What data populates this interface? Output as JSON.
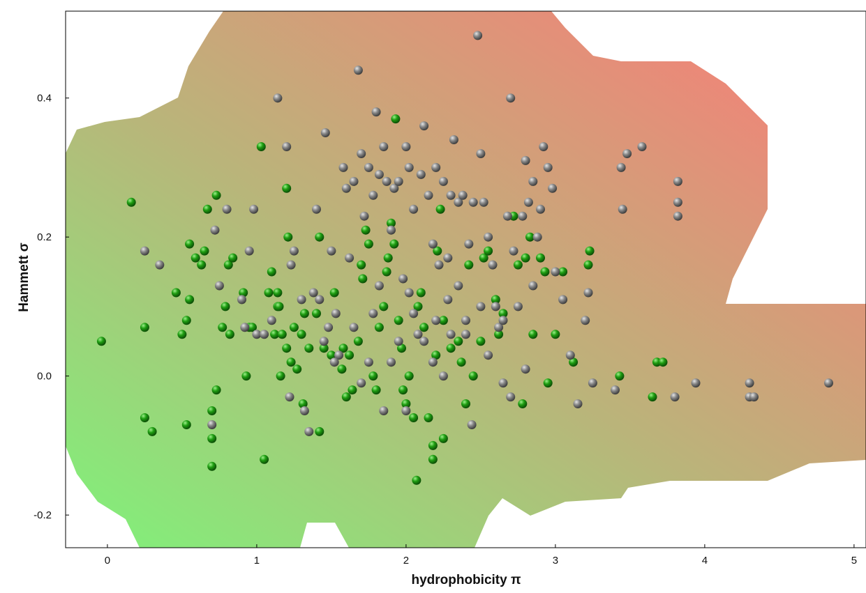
{
  "chart_data": {
    "type": "scatter",
    "title": "",
    "xlabel": "hydrophobicity π",
    "ylabel": "Hammett σ",
    "xlim": [
      -0.28,
      5.08
    ],
    "ylim": [
      -0.247,
      0.525
    ],
    "xticks": [
      0,
      1,
      2,
      3,
      4,
      5
    ],
    "yticks": [
      -0.2,
      0.0,
      0.2,
      0.4
    ],
    "ytick_labels": [
      "-0.2",
      "0.0",
      "0.2",
      "0.4"
    ],
    "xtick_labels": [
      "0",
      "1",
      "2",
      "3",
      "4",
      "5"
    ],
    "grid": false,
    "legend": "none",
    "background_gradient": {
      "low_color": "#7ff27a",
      "high_color": "#fe7878"
    },
    "colors": {
      "green_series": "#1f9e12",
      "gray_series": "#8a8a8a"
    },
    "series": [
      {
        "color_role": "green",
        "points": [
          [
            -0.04,
            0.05
          ],
          [
            0.16,
            0.25
          ],
          [
            0.25,
            0.07
          ],
          [
            0.25,
            -0.06
          ],
          [
            0.3,
            -0.08
          ],
          [
            0.46,
            0.12
          ],
          [
            0.5,
            0.06
          ],
          [
            0.53,
            0.08
          ],
          [
            0.53,
            -0.07
          ],
          [
            0.55,
            0.11
          ],
          [
            0.55,
            0.19
          ],
          [
            0.59,
            0.17
          ],
          [
            0.63,
            0.16
          ],
          [
            0.65,
            0.18
          ],
          [
            0.67,
            0.24
          ],
          [
            0.7,
            -0.05
          ],
          [
            0.7,
            -0.09
          ],
          [
            0.7,
            -0.13
          ],
          [
            0.73,
            0.26
          ],
          [
            0.73,
            -0.02
          ],
          [
            0.77,
            0.07
          ],
          [
            0.79,
            0.1
          ],
          [
            0.81,
            0.16
          ],
          [
            0.82,
            0.06
          ],
          [
            0.84,
            0.17
          ],
          [
            0.91,
            0.12
          ],
          [
            0.93,
            0.0
          ],
          [
            0.95,
            0.07
          ],
          [
            0.97,
            0.07
          ],
          [
            1.03,
            0.33
          ],
          [
            1.05,
            -0.12
          ],
          [
            1.08,
            0.12
          ],
          [
            1.1,
            0.15
          ],
          [
            1.12,
            0.06
          ],
          [
            1.14,
            0.1
          ],
          [
            1.14,
            0.12
          ],
          [
            1.16,
            0.0
          ],
          [
            1.17,
            0.06
          ],
          [
            1.2,
            0.04
          ],
          [
            1.2,
            0.27
          ],
          [
            1.21,
            0.2
          ],
          [
            1.23,
            0.02
          ],
          [
            1.25,
            0.07
          ],
          [
            1.27,
            0.01
          ],
          [
            1.3,
            0.06
          ],
          [
            1.31,
            -0.04
          ],
          [
            1.32,
            0.09
          ],
          [
            1.35,
            0.04
          ],
          [
            1.4,
            0.09
          ],
          [
            1.42,
            0.2
          ],
          [
            1.45,
            0.04
          ],
          [
            1.5,
            0.03
          ],
          [
            1.52,
            0.12
          ],
          [
            1.57,
            0.01
          ],
          [
            1.6,
            -0.03
          ],
          [
            1.62,
            0.03
          ],
          [
            1.64,
            -0.02
          ],
          [
            1.68,
            0.05
          ],
          [
            1.7,
            0.16
          ],
          [
            1.71,
            0.14
          ],
          [
            1.73,
            0.21
          ],
          [
            1.75,
            0.19
          ],
          [
            1.78,
            0.0
          ],
          [
            1.8,
            -0.02
          ],
          [
            1.82,
            0.07
          ],
          [
            1.85,
            0.1
          ],
          [
            1.87,
            0.15
          ],
          [
            1.88,
            0.17
          ],
          [
            1.9,
            0.22
          ],
          [
            1.92,
            0.19
          ],
          [
            1.93,
            0.37
          ],
          [
            1.95,
            0.08
          ],
          [
            1.97,
            0.04
          ],
          [
            1.98,
            -0.02
          ],
          [
            2.0,
            -0.04
          ],
          [
            2.02,
            0.0
          ],
          [
            2.05,
            -0.06
          ],
          [
            2.08,
            0.1
          ],
          [
            2.1,
            0.12
          ],
          [
            2.12,
            0.07
          ],
          [
            2.15,
            -0.06
          ],
          [
            2.18,
            -0.1
          ],
          [
            2.2,
            0.03
          ],
          [
            2.21,
            0.18
          ],
          [
            2.23,
            0.24
          ],
          [
            2.25,
            0.08
          ],
          [
            2.25,
            -0.09
          ],
          [
            2.3,
            0.04
          ],
          [
            2.35,
            0.05
          ],
          [
            2.37,
            0.02
          ],
          [
            2.4,
            -0.04
          ],
          [
            2.42,
            0.16
          ],
          [
            2.45,
            0.0
          ],
          [
            2.5,
            0.05
          ],
          [
            2.52,
            0.17
          ],
          [
            2.55,
            0.18
          ],
          [
            2.6,
            0.11
          ],
          [
            2.62,
            0.06
          ],
          [
            2.65,
            0.09
          ],
          [
            2.72,
            0.23
          ],
          [
            2.75,
            0.16
          ],
          [
            2.78,
            -0.04
          ],
          [
            2.8,
            0.17
          ],
          [
            2.83,
            0.2
          ],
          [
            2.85,
            0.06
          ],
          [
            2.9,
            0.17
          ],
          [
            2.93,
            0.15
          ],
          [
            2.95,
            -0.01
          ],
          [
            3.0,
            0.06
          ],
          [
            3.05,
            0.15
          ],
          [
            3.12,
            0.02
          ],
          [
            3.22,
            0.16
          ],
          [
            3.23,
            0.18
          ],
          [
            3.43,
            0.0
          ],
          [
            3.65,
            -0.03
          ],
          [
            3.68,
            0.02
          ],
          [
            3.72,
            0.02
          ],
          [
            2.07,
            -0.15
          ],
          [
            1.58,
            0.04
          ],
          [
            2.18,
            -0.12
          ],
          [
            1.42,
            -0.08
          ],
          [
            1.15,
            0.1
          ]
        ]
      },
      {
        "color_role": "gray",
        "points": [
          [
            0.25,
            0.18
          ],
          [
            0.35,
            0.16
          ],
          [
            0.7,
            -0.07
          ],
          [
            0.72,
            0.21
          ],
          [
            0.75,
            0.13
          ],
          [
            0.8,
            0.24
          ],
          [
            0.9,
            0.11
          ],
          [
            0.95,
            0.18
          ],
          [
            0.98,
            0.24
          ],
          [
            1.0,
            0.06
          ],
          [
            1.14,
            0.4
          ],
          [
            1.2,
            0.33
          ],
          [
            1.23,
            0.16
          ],
          [
            1.25,
            0.18
          ],
          [
            1.3,
            0.11
          ],
          [
            1.32,
            -0.05
          ],
          [
            1.35,
            -0.08
          ],
          [
            1.4,
            0.24
          ],
          [
            1.42,
            0.11
          ],
          [
            1.46,
            0.35
          ],
          [
            1.5,
            0.18
          ],
          [
            1.53,
            0.09
          ],
          [
            1.55,
            0.03
          ],
          [
            1.58,
            0.3
          ],
          [
            1.6,
            0.27
          ],
          [
            1.62,
            0.17
          ],
          [
            1.65,
            0.28
          ],
          [
            1.68,
            0.44
          ],
          [
            1.7,
            0.32
          ],
          [
            1.72,
            0.23
          ],
          [
            1.75,
            0.3
          ],
          [
            1.78,
            0.26
          ],
          [
            1.8,
            0.38
          ],
          [
            1.82,
            0.29
          ],
          [
            1.85,
            0.33
          ],
          [
            1.87,
            0.28
          ],
          [
            1.9,
            0.21
          ],
          [
            1.92,
            0.27
          ],
          [
            1.95,
            0.28
          ],
          [
            1.98,
            0.14
          ],
          [
            2.0,
            0.33
          ],
          [
            2.02,
            0.3
          ],
          [
            2.05,
            0.24
          ],
          [
            2.08,
            0.06
          ],
          [
            2.1,
            0.29
          ],
          [
            2.12,
            0.36
          ],
          [
            2.15,
            0.26
          ],
          [
            2.18,
            0.19
          ],
          [
            2.2,
            0.3
          ],
          [
            2.22,
            0.16
          ],
          [
            2.25,
            0.28
          ],
          [
            2.28,
            0.17
          ],
          [
            2.3,
            0.26
          ],
          [
            2.32,
            0.34
          ],
          [
            2.35,
            0.25
          ],
          [
            2.38,
            0.26
          ],
          [
            2.4,
            0.08
          ],
          [
            2.42,
            0.19
          ],
          [
            2.45,
            0.25
          ],
          [
            2.48,
            0.49
          ],
          [
            2.5,
            0.32
          ],
          [
            2.52,
            0.25
          ],
          [
            2.55,
            0.2
          ],
          [
            2.58,
            0.16
          ],
          [
            2.6,
            0.1
          ],
          [
            2.62,
            0.07
          ],
          [
            2.65,
            0.08
          ],
          [
            2.68,
            0.23
          ],
          [
            2.7,
            0.4
          ],
          [
            2.72,
            0.18
          ],
          [
            2.75,
            0.1
          ],
          [
            2.78,
            0.23
          ],
          [
            2.8,
            0.31
          ],
          [
            2.82,
            0.25
          ],
          [
            2.85,
            0.28
          ],
          [
            2.88,
            0.2
          ],
          [
            2.9,
            0.24
          ],
          [
            2.92,
            0.33
          ],
          [
            2.95,
            0.3
          ],
          [
            2.98,
            0.27
          ],
          [
            3.0,
            0.15
          ],
          [
            3.05,
            0.11
          ],
          [
            3.1,
            0.03
          ],
          [
            3.15,
            -0.04
          ],
          [
            3.2,
            0.08
          ],
          [
            3.22,
            0.12
          ],
          [
            3.25,
            -0.01
          ],
          [
            3.4,
            -0.02
          ],
          [
            3.44,
            0.3
          ],
          [
            3.45,
            0.24
          ],
          [
            3.48,
            0.32
          ],
          [
            3.58,
            0.33
          ],
          [
            3.8,
            -0.03
          ],
          [
            3.82,
            0.28
          ],
          [
            3.82,
            0.25
          ],
          [
            3.82,
            0.23
          ],
          [
            3.94,
            -0.01
          ],
          [
            4.3,
            -0.01
          ],
          [
            4.3,
            -0.03
          ],
          [
            4.33,
            -0.03
          ],
          [
            4.83,
            -0.01
          ],
          [
            1.65,
            0.07
          ],
          [
            1.7,
            -0.01
          ],
          [
            1.75,
            0.02
          ],
          [
            1.85,
            -0.05
          ],
          [
            1.9,
            0.02
          ],
          [
            1.95,
            0.05
          ],
          [
            2.0,
            -0.05
          ],
          [
            2.05,
            0.09
          ],
          [
            2.12,
            0.05
          ],
          [
            2.18,
            0.02
          ],
          [
            2.25,
            0.0
          ],
          [
            2.3,
            0.06
          ],
          [
            2.35,
            0.13
          ],
          [
            2.44,
            -0.07
          ],
          [
            2.55,
            0.03
          ],
          [
            2.65,
            -0.01
          ],
          [
            2.7,
            -0.03
          ],
          [
            2.8,
            0.01
          ],
          [
            2.85,
            0.13
          ],
          [
            1.38,
            0.12
          ],
          [
            1.48,
            0.07
          ],
          [
            1.52,
            0.02
          ],
          [
            1.78,
            0.09
          ],
          [
            1.82,
            0.13
          ],
          [
            2.02,
            0.12
          ],
          [
            2.2,
            0.08
          ],
          [
            2.28,
            0.11
          ],
          [
            2.4,
            0.06
          ],
          [
            2.5,
            0.1
          ],
          [
            0.92,
            0.07
          ],
          [
            1.05,
            0.06
          ],
          [
            1.22,
            -0.03
          ],
          [
            1.1,
            0.08
          ],
          [
            1.45,
            0.05
          ]
        ]
      }
    ]
  }
}
